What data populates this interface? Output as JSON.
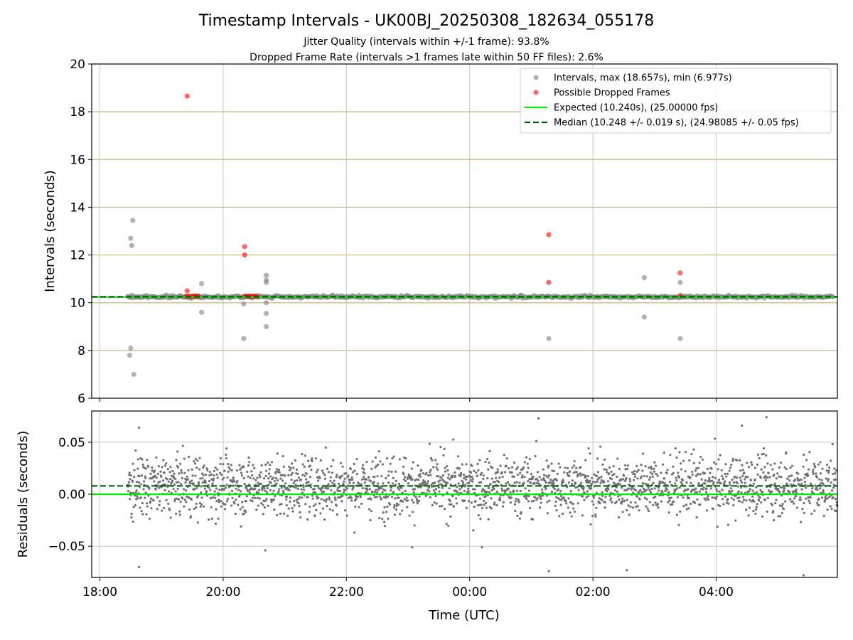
{
  "title": "Timestamp Intervals - UK00BJ_20250308_182634_055178",
  "subtitle1": "Jitter Quality (intervals within +/-1 frame): 93.8%",
  "subtitle2": "Dropped Frame Rate (intervals >1 frames late within 50 FF files): 2.6%",
  "xlabel": "Time (UTC)",
  "colors": {
    "intervals": "#808080",
    "dropped": "#ff0000",
    "expected": "#00ee00",
    "median": "#006400",
    "hline": "#c8b878",
    "grid": "#c8c8c8"
  },
  "chart_data": [
    {
      "type": "scatter",
      "ylabel": "Intervals (seconds)",
      "ylim": [
        6,
        20
      ],
      "yticks": [
        "6",
        "8",
        "10",
        "12",
        "14",
        "16",
        "18",
        "20"
      ],
      "grid": true,
      "legend_position": "top-right",
      "legend": [
        "Intervals, max (18.657s), min (6.977s)",
        "Possible Dropped Frames",
        "Expected (10.240s), (25.00000 fps)",
        "Median (10.248 +/- 0.019 s), (24.98085 +/- 0.05 fps)"
      ],
      "expected": 10.24,
      "median": 10.248,
      "series": [
        {
          "name": "Intervals",
          "band": {
            "x_start": "18:27",
            "x_end": "05:54",
            "y_center": 10.248,
            "y_spread": 0.04
          },
          "outliers": [
            {
              "x": "18:30",
              "y": 12.7
            },
            {
              "x": "18:31",
              "y": 12.4
            },
            {
              "x": "18:32",
              "y": 13.45
            },
            {
              "x": "18:30",
              "y": 8.1
            },
            {
              "x": "18:29",
              "y": 7.8
            },
            {
              "x": "18:33",
              "y": 7.0
            },
            {
              "x": "19:39",
              "y": 10.8
            },
            {
              "x": "19:39",
              "y": 9.6
            },
            {
              "x": "20:20",
              "y": 9.95
            },
            {
              "x": "20:20",
              "y": 8.5
            },
            {
              "x": "20:42",
              "y": 11.15
            },
            {
              "x": "20:42",
              "y": 10.95
            },
            {
              "x": "20:42",
              "y": 10.85
            },
            {
              "x": "20:42",
              "y": 10.0
            },
            {
              "x": "20:42",
              "y": 9.55
            },
            {
              "x": "20:42",
              "y": 9.0
            },
            {
              "x": "01:17",
              "y": 8.5
            },
            {
              "x": "02:50",
              "y": 11.05
            },
            {
              "x": "02:50",
              "y": 9.4
            },
            {
              "x": "03:25",
              "y": 10.85
            },
            {
              "x": "03:25",
              "y": 8.5
            }
          ]
        },
        {
          "name": "Possible Dropped Frames",
          "points": [
            {
              "x": "19:25",
              "y": 18.657
            },
            {
              "x": "19:25",
              "y": 10.5
            },
            {
              "x": "19:24",
              "y": 10.27
            },
            {
              "x": "19:26",
              "y": 10.27
            },
            {
              "x": "19:28",
              "y": 10.27
            },
            {
              "x": "19:30",
              "y": 10.27
            },
            {
              "x": "19:32",
              "y": 10.27
            },
            {
              "x": "19:34",
              "y": 10.27
            },
            {
              "x": "19:36",
              "y": 10.27
            },
            {
              "x": "20:21",
              "y": 12.35
            },
            {
              "x": "20:21",
              "y": 12.0
            },
            {
              "x": "20:21",
              "y": 10.27
            },
            {
              "x": "20:23",
              "y": 10.27
            },
            {
              "x": "20:25",
              "y": 10.27
            },
            {
              "x": "20:27",
              "y": 10.27
            },
            {
              "x": "20:29",
              "y": 10.27
            },
            {
              "x": "20:31",
              "y": 10.27
            },
            {
              "x": "20:33",
              "y": 10.27
            },
            {
              "x": "01:17",
              "y": 12.85
            },
            {
              "x": "01:17",
              "y": 10.85
            },
            {
              "x": "03:25",
              "y": 11.25
            },
            {
              "x": "03:25",
              "y": 10.3
            }
          ]
        }
      ]
    },
    {
      "type": "scatter",
      "ylabel": "Residuals (seconds)",
      "ylim": [
        -0.08,
        0.08
      ],
      "yticks": [
        "−0.05",
        "0.00",
        "0.05"
      ],
      "xticks": [
        "18:00",
        "20:00",
        "22:00",
        "00:00",
        "02:00",
        "04:00"
      ],
      "xlim": [
        "17:52",
        "05:58"
      ],
      "grid": true,
      "expected": 0.0,
      "median": 0.008,
      "series": [
        {
          "name": "Residuals",
          "band": {
            "x_start": "18:27",
            "x_end": "05:58",
            "y_center": 0.008,
            "y_spread": 0.02
          },
          "outliers": [
            {
              "x": "18:38",
              "y": -0.07
            },
            {
              "x": "20:41",
              "y": -0.054
            },
            {
              "x": "23:04",
              "y": -0.051
            },
            {
              "x": "00:12",
              "y": -0.051
            },
            {
              "x": "01:17",
              "y": -0.074
            },
            {
              "x": "02:33",
              "y": -0.073
            },
            {
              "x": "05:25",
              "y": -0.078
            },
            {
              "x": "01:07",
              "y": 0.073
            },
            {
              "x": "04:49",
              "y": 0.074
            },
            {
              "x": "04:25",
              "y": 0.066
            },
            {
              "x": "18:38",
              "y": 0.064
            }
          ]
        }
      ]
    }
  ]
}
